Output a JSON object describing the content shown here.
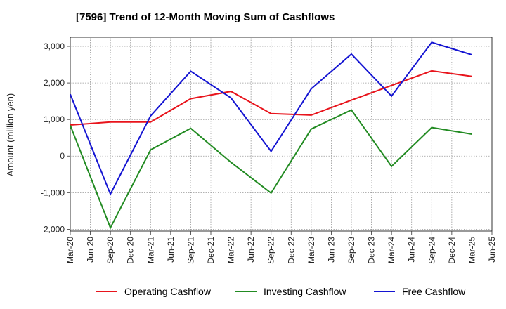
{
  "title": "[7596]  Trend of 12-Month Moving Sum of Cashflows",
  "chart_data": {
    "type": "line",
    "ylabel": "Amount (million yen)",
    "xlabel": "",
    "ylim": [
      -2050,
      3250
    ],
    "yticks": [
      3000,
      2000,
      1000,
      0,
      -1000,
      -2000
    ],
    "ytick_labels": [
      "3,000",
      "2,000",
      "1,000",
      "0",
      "-1,000",
      "-2,000"
    ],
    "categories": [
      "Mar-20",
      "Jun-20",
      "Sep-20",
      "Dec-20",
      "Mar-21",
      "Jun-21",
      "Sep-21",
      "Dec-21",
      "Mar-22",
      "Jun-22",
      "Sep-22",
      "Dec-22",
      "Mar-23",
      "Jun-23",
      "Sep-23",
      "Dec-23",
      "Mar-24",
      "Jun-24",
      "Sep-24",
      "Dec-24",
      "Mar-25",
      "Jun-25"
    ],
    "grid": true,
    "legend_position": "bottom",
    "series": [
      {
        "name": "Operating Cashflow",
        "color": "#e8141c",
        "points": [
          {
            "x": "Mar-20",
            "y": 850
          },
          {
            "x": "Sep-20",
            "y": 930
          },
          {
            "x": "Mar-21",
            "y": 930
          },
          {
            "x": "Sep-21",
            "y": 1570
          },
          {
            "x": "Mar-22",
            "y": 1770
          },
          {
            "x": "Sep-22",
            "y": 1160
          },
          {
            "x": "Mar-23",
            "y": 1120
          },
          {
            "x": "Sep-23",
            "y": 1530
          },
          {
            "x": "Mar-24",
            "y": 1930
          },
          {
            "x": "Sep-24",
            "y": 2330
          },
          {
            "x": "Mar-25",
            "y": 2180
          }
        ]
      },
      {
        "name": "Investing Cashflow",
        "color": "#228b22",
        "points": [
          {
            "x": "Mar-20",
            "y": 840
          },
          {
            "x": "Sep-20",
            "y": -1960
          },
          {
            "x": "Mar-21",
            "y": 170
          },
          {
            "x": "Sep-21",
            "y": 760
          },
          {
            "x": "Mar-22",
            "y": -170
          },
          {
            "x": "Sep-22",
            "y": -1010
          },
          {
            "x": "Mar-23",
            "y": 740
          },
          {
            "x": "Sep-23",
            "y": 1260
          },
          {
            "x": "Mar-24",
            "y": -280
          },
          {
            "x": "Sep-24",
            "y": 780
          },
          {
            "x": "Mar-25",
            "y": 600
          }
        ]
      },
      {
        "name": "Free Cashflow",
        "color": "#1414d2",
        "points": [
          {
            "x": "Mar-20",
            "y": 1690
          },
          {
            "x": "Sep-20",
            "y": -1040
          },
          {
            "x": "Mar-21",
            "y": 1100
          },
          {
            "x": "Sep-21",
            "y": 2320
          },
          {
            "x": "Mar-22",
            "y": 1590
          },
          {
            "x": "Sep-22",
            "y": 130
          },
          {
            "x": "Mar-23",
            "y": 1840
          },
          {
            "x": "Sep-23",
            "y": 2790
          },
          {
            "x": "Mar-24",
            "y": 1640
          },
          {
            "x": "Sep-24",
            "y": 3110
          },
          {
            "x": "Mar-25",
            "y": 2770
          }
        ]
      }
    ]
  }
}
